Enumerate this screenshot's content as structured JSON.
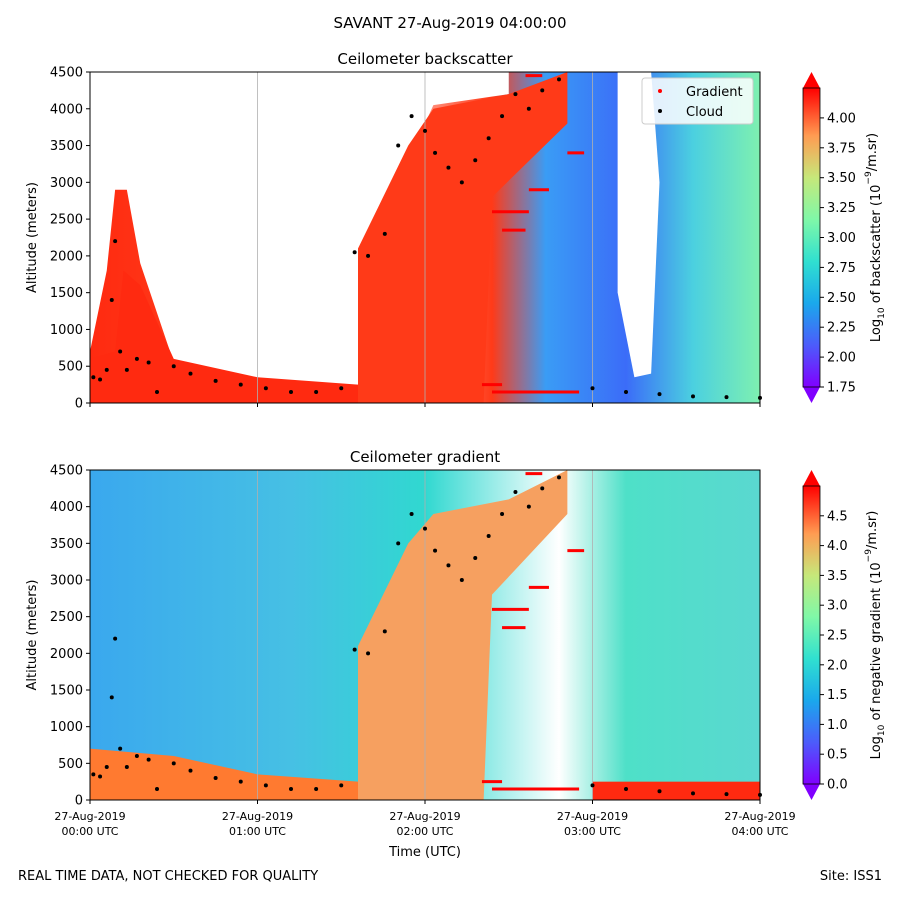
{
  "suptitle": "SAVANT 27-Aug-2019 04:00:00",
  "footer": {
    "quality_note": "REAL TIME DATA, NOT CHECKED FOR QUALITY",
    "site": "Site: ISS1"
  },
  "chart_data": [
    {
      "type": "heatmap",
      "title": "Ceilometer backscatter",
      "ylabel": "Altitude (meters)",
      "xlabel": "",
      "ylim": [
        0,
        4500
      ],
      "yticks": [
        0,
        500,
        1000,
        1500,
        2000,
        2500,
        3000,
        3500,
        4000,
        4500
      ],
      "xticks_hours": [
        0,
        1,
        2,
        3,
        4
      ],
      "grid": "vertical lines at hourly ticks",
      "legend": {
        "placement": "top-right",
        "entries": [
          {
            "label": "Gradient",
            "color": "#ff0000",
            "marker": "dot"
          },
          {
            "label": "Cloud",
            "color": "#000000",
            "marker": "dot"
          }
        ]
      },
      "colorbar": {
        "label": "Log10 of backscatter (10^-9/m.sr)",
        "label_main": "Log",
        "label_sub": "10",
        "label_rest": " of backscatter (10",
        "label_sup": "−9",
        "label_end": "/m.sr)",
        "min": 1.75,
        "max": 4.25,
        "ticks": [
          "1.75",
          "2.00",
          "2.25",
          "2.50",
          "2.75",
          "3.00",
          "3.25",
          "3.50",
          "3.75",
          "4.00"
        ],
        "colormap": "rainbow",
        "extend": "both"
      },
      "cloud_points": [
        {
          "t": 0.02,
          "alt": 350
        },
        {
          "t": 0.06,
          "alt": 320
        },
        {
          "t": 0.1,
          "alt": 450
        },
        {
          "t": 0.13,
          "alt": 1400
        },
        {
          "t": 0.15,
          "alt": 2200
        },
        {
          "t": 0.18,
          "alt": 700
        },
        {
          "t": 0.22,
          "alt": 450
        },
        {
          "t": 0.28,
          "alt": 600
        },
        {
          "t": 0.35,
          "alt": 550
        },
        {
          "t": 0.4,
          "alt": 150
        },
        {
          "t": 0.5,
          "alt": 500
        },
        {
          "t": 0.6,
          "alt": 400
        },
        {
          "t": 0.75,
          "alt": 300
        },
        {
          "t": 0.9,
          "alt": 250
        },
        {
          "t": 1.05,
          "alt": 200
        },
        {
          "t": 1.2,
          "alt": 150
        },
        {
          "t": 1.35,
          "alt": 150
        },
        {
          "t": 1.5,
          "alt": 200
        },
        {
          "t": 1.58,
          "alt": 2050
        },
        {
          "t": 1.66,
          "alt": 2000
        },
        {
          "t": 1.76,
          "alt": 2300
        },
        {
          "t": 1.84,
          "alt": 3500
        },
        {
          "t": 1.92,
          "alt": 3900
        },
        {
          "t": 2.0,
          "alt": 3700
        },
        {
          "t": 2.06,
          "alt": 3400
        },
        {
          "t": 2.14,
          "alt": 3200
        },
        {
          "t": 2.22,
          "alt": 3000
        },
        {
          "t": 2.3,
          "alt": 3300
        },
        {
          "t": 2.38,
          "alt": 3600
        },
        {
          "t": 2.46,
          "alt": 3900
        },
        {
          "t": 2.54,
          "alt": 4200
        },
        {
          "t": 2.62,
          "alt": 4000
        },
        {
          "t": 2.7,
          "alt": 4250
        },
        {
          "t": 2.8,
          "alt": 4400
        },
        {
          "t": 3.0,
          "alt": 200
        },
        {
          "t": 3.2,
          "alt": 150
        },
        {
          "t": 3.4,
          "alt": 120
        },
        {
          "t": 3.6,
          "alt": 90
        },
        {
          "t": 3.8,
          "alt": 80
        },
        {
          "t": 4.0,
          "alt": 70
        }
      ],
      "gradient_segments": [
        {
          "t0": 2.6,
          "t1": 2.7,
          "alt": 4450
        },
        {
          "t0": 2.62,
          "t1": 2.74,
          "alt": 2900
        },
        {
          "t0": 2.4,
          "t1": 2.62,
          "alt": 2600
        },
        {
          "t0": 2.46,
          "t1": 2.6,
          "alt": 2350
        },
        {
          "t0": 2.85,
          "t1": 2.95,
          "alt": 3400
        },
        {
          "t0": 2.4,
          "t1": 2.92,
          "alt": 150
        },
        {
          "t0": 2.34,
          "t1": 2.46,
          "alt": 250
        }
      ]
    },
    {
      "type": "heatmap",
      "title": "Ceilometer gradient",
      "ylabel": "Altitude (meters)",
      "xlabel": "Time (UTC)",
      "ylim": [
        0,
        4500
      ],
      "yticks": [
        0,
        500,
        1000,
        1500,
        2000,
        2500,
        3000,
        3500,
        4000,
        4500
      ],
      "xtick_labels": [
        {
          "date": "27-Aug-2019",
          "time": "00:00 UTC"
        },
        {
          "date": "27-Aug-2019",
          "time": "01:00 UTC"
        },
        {
          "date": "27-Aug-2019",
          "time": "02:00 UTC"
        },
        {
          "date": "27-Aug-2019",
          "time": "03:00 UTC"
        },
        {
          "date": "27-Aug-2019",
          "time": "04:00 UTC"
        }
      ],
      "grid": "vertical lines at hourly ticks",
      "colorbar": {
        "label": "Log10 of negative gradient (10^-9/m.sr)",
        "label_main": "Log",
        "label_sub": "10",
        "label_rest": " of negative gradient (10",
        "label_sup": "−9",
        "label_end": "/m.sr)",
        "min": 0.0,
        "max": 5.0,
        "ticks": [
          "0.0",
          "0.5",
          "1.0",
          "1.5",
          "2.0",
          "2.5",
          "3.0",
          "3.5",
          "4.0",
          "4.5"
        ],
        "colormap": "rainbow",
        "extend": "both"
      }
    }
  ]
}
